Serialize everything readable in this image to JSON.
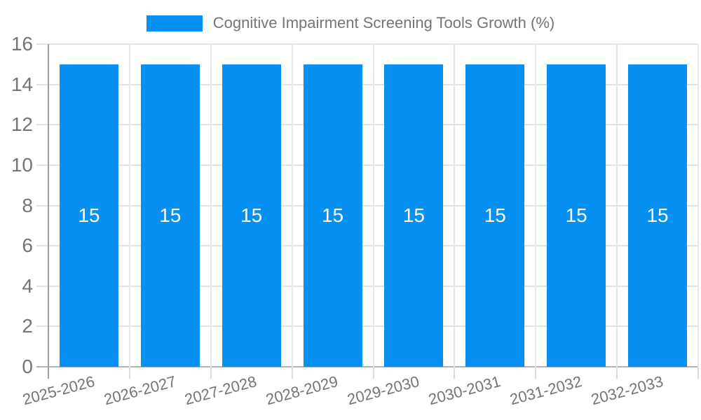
{
  "legend": {
    "label": "Cognitive Impairment Screening Tools Growth (%)"
  },
  "colors": {
    "bar": "#0590f2",
    "grid": "#e3e3e3",
    "vgrid": "#e8e8e8",
    "baseline": "#b3b3b3",
    "axis": "#9e9e9e",
    "tick": "#dcdcdc",
    "text": "#757575",
    "bar_label": "#ffffff",
    "background": "#ffffff"
  },
  "chart_data": {
    "type": "bar",
    "title": "Cognitive Impairment Screening Tools Growth (%)",
    "categories": [
      "2025-2026",
      "2026-2027",
      "2027-2028",
      "2028-2029",
      "2029-2030",
      "2030-2031",
      "2031-2032",
      "2032-2033"
    ],
    "values": [
      15,
      15,
      15,
      15,
      15,
      15,
      15,
      15
    ],
    "bar_labels": [
      "15",
      "15",
      "15",
      "15",
      "15",
      "15",
      "15",
      "15"
    ],
    "xlabel": "",
    "ylabel": "",
    "ylim": [
      0,
      16
    ],
    "yticks": [
      0,
      2,
      4,
      6,
      8,
      10,
      12,
      14,
      16
    ],
    "grid": true,
    "legend_position": "top",
    "x_label_rotation_deg": -15,
    "bar_label_position": "center"
  }
}
